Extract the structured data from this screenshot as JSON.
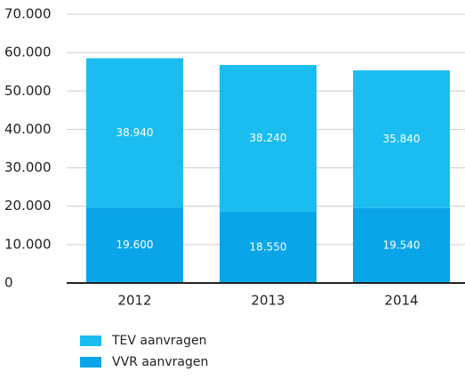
{
  "chart_data": {
    "type": "stacked_bar",
    "categories": [
      "2012",
      "2013",
      "2014"
    ],
    "series": [
      {
        "name": "TEV aanvragen",
        "color": "#1bbdf0",
        "values": [
          38940,
          38240,
          35840
        ],
        "value_labels": [
          "38.940",
          "38.240",
          "35.840"
        ]
      },
      {
        "name": "VVR aanvragen",
        "color": "#0aa5e8",
        "values": [
          19600,
          18550,
          19540
        ],
        "value_labels": [
          "19.600",
          "18.550",
          "19.540"
        ]
      }
    ],
    "ylim": [
      0,
      70000
    ],
    "yticks": [
      {
        "value": 0,
        "label": "0"
      },
      {
        "value": 10000,
        "label": "10.000"
      },
      {
        "value": 20000,
        "label": "20.000"
      },
      {
        "value": 30000,
        "label": "30.000"
      },
      {
        "value": 40000,
        "label": "40.000"
      },
      {
        "value": 50000,
        "label": "50.000"
      },
      {
        "value": 60000,
        "label": "60.000"
      },
      {
        "value": 70000,
        "label": "70.000"
      }
    ],
    "grid": true
  }
}
